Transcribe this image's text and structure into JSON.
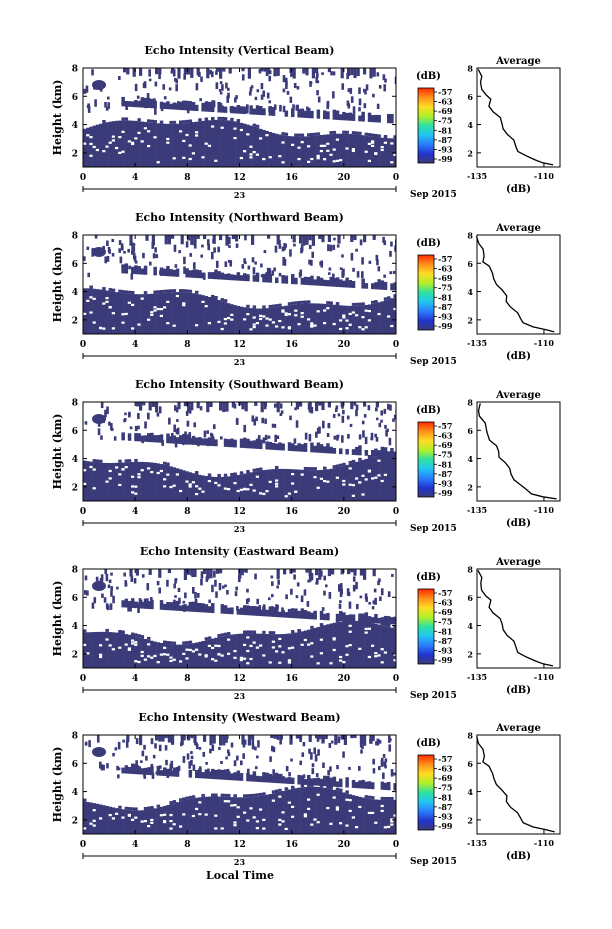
{
  "chart_data": [
    {
      "type": "heatmap",
      "title": "Echo Intensity (Vertical Beam)",
      "ylabel": "Height (km)",
      "x_ticks": [
        "0",
        "4",
        "8",
        "12",
        "16",
        "20",
        "0"
      ],
      "y_ticks": [
        "2",
        "4",
        "6",
        "8"
      ],
      "xlim": [
        0,
        24
      ],
      "ylim": [
        1,
        8
      ],
      "date_day": "23",
      "date_month": "Sep 2015",
      "colorbar": {
        "unit": "(dB)",
        "ticks": [
          "-57",
          "-63",
          "-69",
          "-75",
          "-81",
          "-87",
          "-93",
          "-99"
        ],
        "range": [
          -99,
          -57
        ]
      },
      "profile": {
        "title": "Average",
        "xlabel": "(dB)",
        "x_ticks": [
          "-135",
          "-110"
        ],
        "y_ticks": [
          "2",
          "4",
          "6",
          "8"
        ],
        "xlim": [
          -135,
          -104
        ],
        "ylim": [
          1,
          8
        ]
      },
      "layers": [
        {
          "height_range": [
            1.0,
            3.0
          ],
          "description_value_db": -98
        },
        {
          "height_range": [
            3.0,
            4.0
          ],
          "description_value_db": -99
        }
      ]
    },
    {
      "type": "heatmap",
      "title": "Echo Intensity (Northward Beam)",
      "ylabel": "Height (km)",
      "x_ticks": [
        "0",
        "4",
        "8",
        "12",
        "16",
        "20",
        "0"
      ],
      "y_ticks": [
        "2",
        "4",
        "6",
        "8"
      ],
      "xlim": [
        0,
        24
      ],
      "ylim": [
        1,
        8
      ],
      "date_day": "23",
      "date_month": "Sep 2015",
      "colorbar": {
        "unit": "(dB)",
        "ticks": [
          "-57",
          "-63",
          "-69",
          "-75",
          "-81",
          "-87",
          "-93",
          "-99"
        ],
        "range": [
          -99,
          -57
        ]
      },
      "profile": {
        "title": "Average",
        "xlabel": "(dB)",
        "x_ticks": [
          "-135",
          "-110"
        ],
        "y_ticks": [
          "2",
          "4",
          "6",
          "8"
        ],
        "xlim": [
          -135,
          -104
        ],
        "ylim": [
          1,
          8
        ]
      }
    },
    {
      "type": "heatmap",
      "title": "Echo Intensity (Southward Beam)",
      "ylabel": "Height (km)",
      "x_ticks": [
        "0",
        "4",
        "8",
        "12",
        "16",
        "20",
        "0"
      ],
      "y_ticks": [
        "2",
        "4",
        "6",
        "8"
      ],
      "xlim": [
        0,
        24
      ],
      "ylim": [
        1,
        8
      ],
      "date_day": "23",
      "date_month": "Sep 2015",
      "colorbar": {
        "unit": "(dB)",
        "ticks": [
          "-57",
          "-63",
          "-69",
          "-75",
          "-81",
          "-87",
          "-93",
          "-99"
        ],
        "range": [
          -99,
          -57
        ]
      },
      "profile": {
        "title": "Average",
        "xlabel": "(dB)",
        "x_ticks": [
          "-135",
          "-110"
        ],
        "y_ticks": [
          "2",
          "4",
          "6",
          "8"
        ],
        "xlim": [
          -135,
          -104
        ],
        "ylim": [
          1,
          8
        ]
      }
    },
    {
      "type": "heatmap",
      "title": "Echo Intensity (Eastward Beam)",
      "ylabel": "Height (km)",
      "x_ticks": [
        "0",
        "4",
        "8",
        "12",
        "16",
        "20",
        "0"
      ],
      "y_ticks": [
        "2",
        "4",
        "6",
        "8"
      ],
      "xlim": [
        0,
        24
      ],
      "ylim": [
        1,
        8
      ],
      "date_day": "23",
      "date_month": "Sep 2015",
      "colorbar": {
        "unit": "(dB)",
        "ticks": [
          "-57",
          "-63",
          "-69",
          "-75",
          "-81",
          "-87",
          "-93",
          "-99"
        ],
        "range": [
          -99,
          -57
        ]
      },
      "profile": {
        "title": "Average",
        "xlabel": "(dB)",
        "x_ticks": [
          "-135",
          "-110"
        ],
        "y_ticks": [
          "2",
          "4",
          "6",
          "8"
        ],
        "xlim": [
          -135,
          -104
        ],
        "ylim": [
          1,
          8
        ]
      }
    },
    {
      "type": "heatmap",
      "title": "Echo Intensity (Westward Beam)",
      "ylabel": "Height (km)",
      "x_ticks": [
        "0",
        "4",
        "8",
        "12",
        "16",
        "20",
        "0"
      ],
      "y_ticks": [
        "2",
        "4",
        "6",
        "8"
      ],
      "xlim": [
        0,
        24
      ],
      "ylim": [
        1,
        8
      ],
      "date_day": "23",
      "date_month": "Sep 2015",
      "colorbar": {
        "unit": "(dB)",
        "ticks": [
          "-57",
          "-63",
          "-69",
          "-75",
          "-81",
          "-87",
          "-93",
          "-99"
        ],
        "range": [
          -99,
          -57
        ]
      },
      "profile": {
        "title": "Average",
        "xlabel": "(dB)",
        "x_ticks": [
          "-135",
          "-110"
        ],
        "y_ticks": [
          "2",
          "4",
          "6",
          "8"
        ],
        "xlim": [
          -135,
          -104
        ],
        "ylim": [
          1,
          8
        ]
      }
    }
  ],
  "xlabel": "Local Time",
  "colors": {
    "fill": "#3b3b7a",
    "colormap": [
      "#ff2a00",
      "#ff8c1a",
      "#ffdd22",
      "#aef02b",
      "#2ee0a0",
      "#22c8f0",
      "#2a7dff",
      "#2233cc",
      "#3b3b7a"
    ]
  },
  "average_profile": {
    "points": [
      [
        -134.5,
        7.9
      ],
      [
        -134,
        7.4
      ],
      [
        -133.5,
        7.0
      ],
      [
        -132.5,
        6.5
      ],
      [
        -132,
        6.1
      ],
      [
        -130.5,
        5.8
      ],
      [
        -130,
        5.3
      ],
      [
        -128.5,
        4.9
      ],
      [
        -127,
        4.5
      ],
      [
        -126,
        4.1
      ],
      [
        -124.5,
        3.7
      ],
      [
        -123.5,
        3.3
      ],
      [
        -122,
        2.9
      ],
      [
        -120.5,
        2.5
      ],
      [
        -119,
        2.1
      ],
      [
        -117,
        1.8
      ],
      [
        -114,
        1.5
      ],
      [
        -110,
        1.3
      ],
      [
        -106,
        1.15
      ]
    ]
  }
}
